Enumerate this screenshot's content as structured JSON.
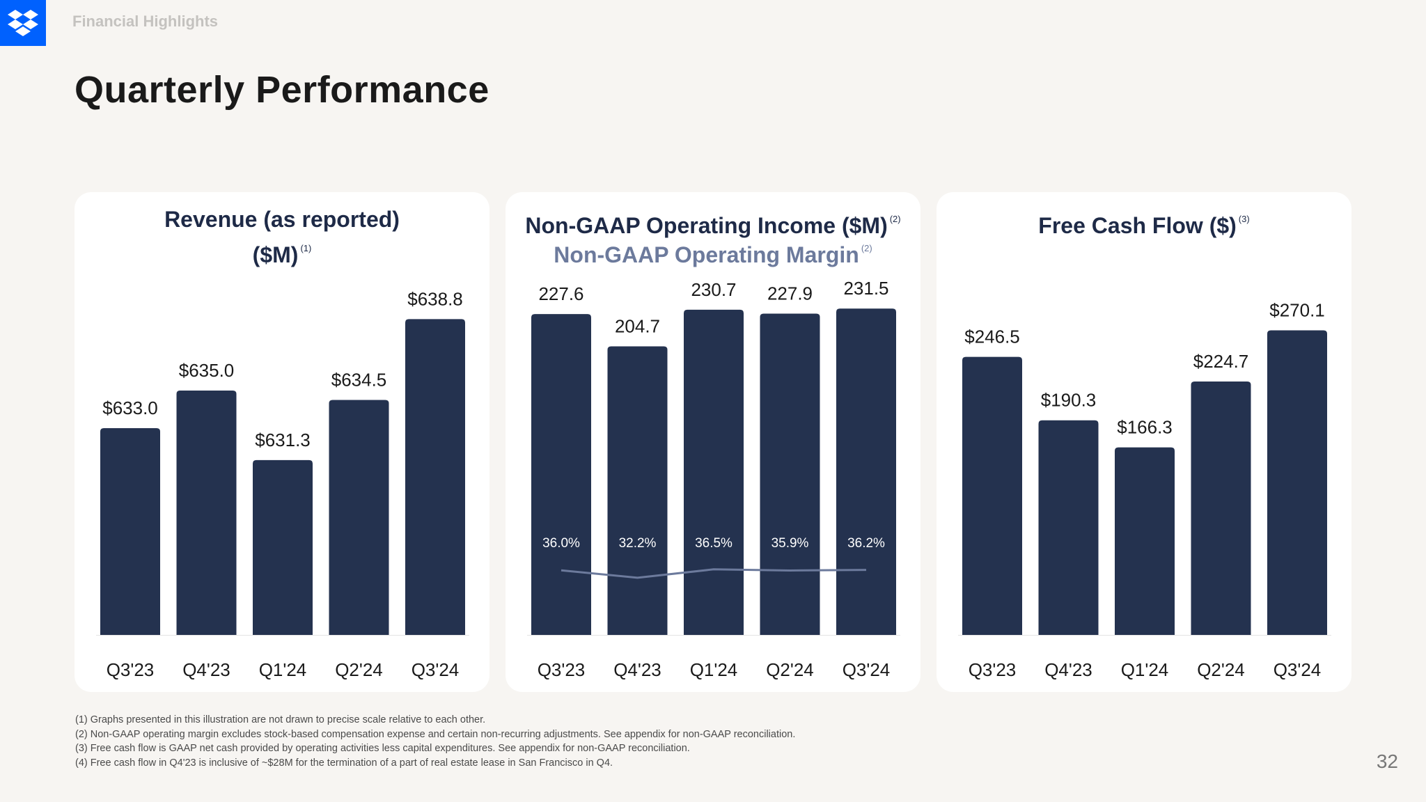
{
  "header": {
    "section_label": "Financial Highlights",
    "title": "Quarterly Performance",
    "logo": "dropbox-logo-icon"
  },
  "colors": {
    "bar": "#24324f",
    "line": "#6c7a9c",
    "text_dark": "#1e2a47",
    "card_bg": "#ffffff",
    "page_bg": "#f7f5f2",
    "logo_bg": "#0061fe"
  },
  "chart_data": [
    {
      "type": "bar",
      "title": "Revenue (as reported) ($M)",
      "title_line1": "Revenue (as reported)",
      "title_line2": "($M)",
      "title_ref": "(1)",
      "categories": [
        "Q3'23",
        "Q4'23",
        "Q1'24",
        "Q2'24",
        "Q3'24"
      ],
      "values": [
        633.0,
        635.0,
        631.3,
        634.5,
        638.8
      ],
      "labels": [
        "$633.0",
        "$635.0",
        "$631.3",
        "$634.5",
        "$638.8"
      ],
      "ylim": [
        622,
        640
      ]
    },
    {
      "type": "bar",
      "title": "Non-GAAP Operating Income ($M)",
      "title_ref": "(2)",
      "subtitle": "Non-GAAP Operating Margin",
      "subtitle_ref": "(2)",
      "categories": [
        "Q3'23",
        "Q4'23",
        "Q1'24",
        "Q2'24",
        "Q3'24"
      ],
      "values": [
        227.6,
        204.7,
        230.7,
        227.9,
        231.5
      ],
      "labels": [
        "227.6",
        "204.7",
        "230.7",
        "227.9",
        "231.5"
      ],
      "ylim": [
        0,
        240
      ],
      "series": [
        {
          "name": "Non-GAAP Operating Margin",
          "type": "line",
          "values": [
            36.0,
            32.2,
            36.5,
            35.9,
            36.2
          ],
          "labels": [
            "36.0%",
            "32.2%",
            "36.5%",
            "35.9%",
            "36.2%"
          ]
        }
      ]
    },
    {
      "type": "bar",
      "title": "Free Cash Flow ($)",
      "title_ref": "(3)",
      "categories": [
        "Q3'23",
        "Q4'23",
        "Q1'24",
        "Q2'24",
        "Q3'24"
      ],
      "values": [
        246.5,
        190.3,
        166.3,
        224.7,
        270.1
      ],
      "labels": [
        "$246.5",
        "$190.3",
        "$166.3",
        "$224.7",
        "$270.1"
      ],
      "ylim": [
        0,
        300
      ]
    }
  ],
  "footnotes": [
    "(1) Graphs presented in this illustration are not drawn to precise scale relative to each other.",
    "(2) Non-GAAP operating margin excludes stock-based compensation expense and certain non-recurring adjustments. See appendix for non-GAAP reconciliation.",
    "(3) Free cash flow is GAAP net cash provided by operating activities less capital expenditures. See appendix for non-GAAP reconciliation.",
    "(4) Free cash flow in Q4'23 is inclusive of ~$28M for the termination of a part of real estate lease in San Francisco in Q4."
  ],
  "page_number": "32"
}
